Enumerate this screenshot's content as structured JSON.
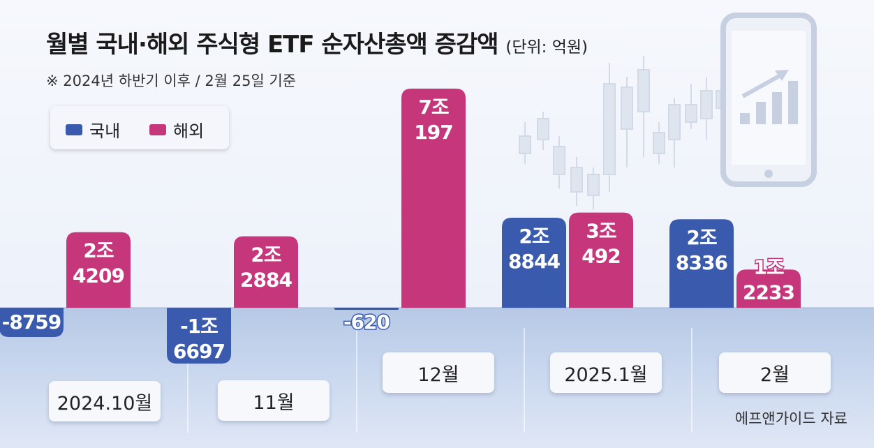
{
  "title": "월별 국내·해외 주식형 ETF 순자산총액 증감액",
  "unit": "(단위: 억원)",
  "subtitle": "※ 2024년 하반기 이후 / 2월 25일 기준",
  "legend": {
    "domestic": "국내",
    "overseas": "해외"
  },
  "source": "에프앤가이드 자료",
  "colors": {
    "domestic": "#3a5aad",
    "overseas": "#c6367a",
    "text_on_bar": "#ffffff"
  },
  "chart_data": {
    "type": "bar",
    "title": "월별 국내·해외 주식형 ETF 순자산총액 증감액",
    "ylabel": "억원",
    "categories": [
      "2024.10월",
      "11월",
      "12월",
      "2025.1월",
      "2월"
    ],
    "series": [
      {
        "name": "국내",
        "values": [
          -8759,
          -16697,
          -620,
          28844,
          28336
        ],
        "labels": [
          [
            "-8759"
          ],
          [
            "-1조",
            "6697"
          ],
          [
            "-620"
          ],
          [
            "2조",
            "8844"
          ],
          [
            "2조",
            "8336"
          ]
        ]
      },
      {
        "name": "해외",
        "values": [
          24209,
          22884,
          70197,
          30492,
          12233
        ],
        "labels": [
          [
            "2조",
            "4209"
          ],
          [
            "2조",
            "2884"
          ],
          [
            "7조",
            "197"
          ],
          [
            "3조",
            "492"
          ],
          [
            "1조",
            "2233"
          ]
        ]
      }
    ],
    "ylim": [
      -17000,
      71000
    ]
  }
}
